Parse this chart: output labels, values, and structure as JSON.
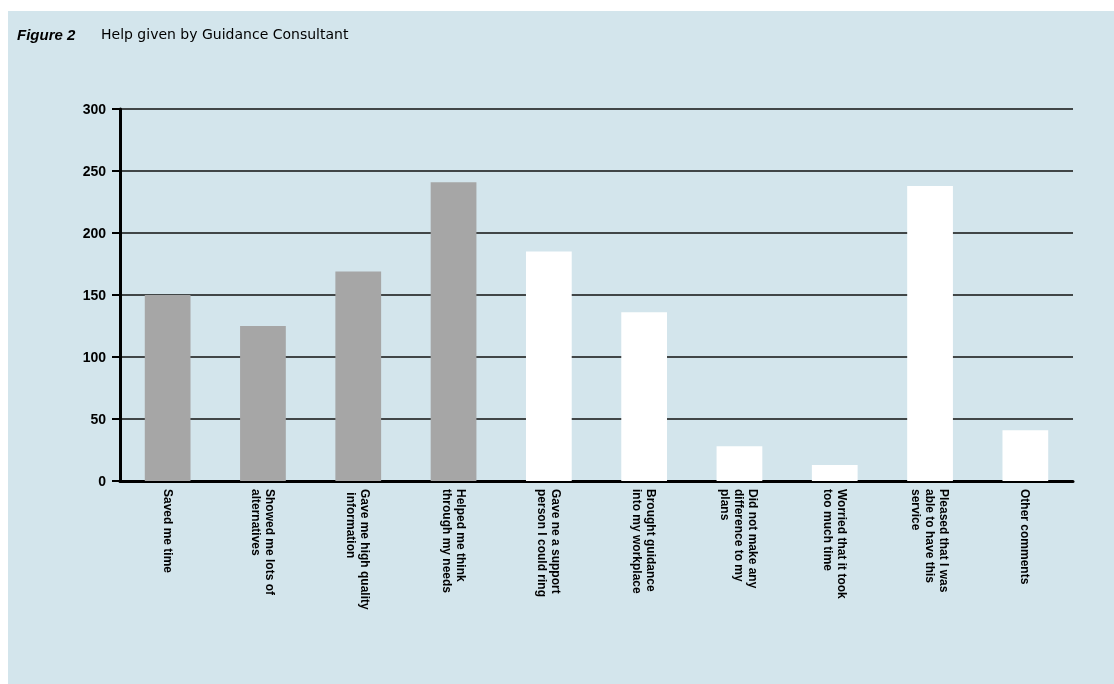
{
  "chart_data": {
    "type": "bar",
    "title": "Figure 2",
    "subtitle": "Help given by Guidance Consultant",
    "categories": [
      "Saved me time",
      "Showed me lots of alternatives",
      "Gave me high quality information",
      "Helped me think through my needs",
      "Gave ne a support person I could ring",
      "Brought guidance into my workplace",
      "Did not make any difference to my plans",
      "Worried that it took too much time",
      "Pleased that I was able to have this service",
      "Other comments"
    ],
    "values": [
      150,
      125,
      169,
      241,
      185,
      136,
      28,
      13,
      238,
      41
    ],
    "colors": [
      "#a6a6a6",
      "#a6a6a6",
      "#a6a6a6",
      "#a6a6a6",
      "#ffffff",
      "#ffffff",
      "#ffffff",
      "#ffffff",
      "#ffffff",
      "#ffffff"
    ],
    "ylim": [
      0,
      300
    ],
    "yticks": [
      0,
      50,
      100,
      150,
      200,
      250,
      300
    ],
    "grid": "y"
  }
}
